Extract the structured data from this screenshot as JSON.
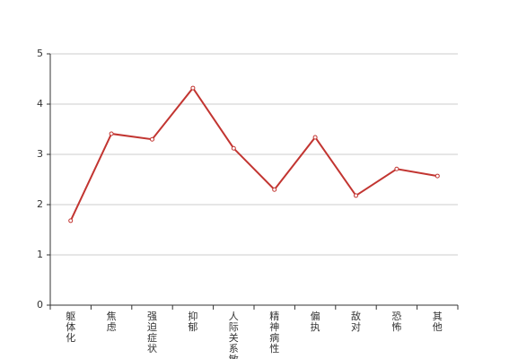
{
  "chart_data": {
    "type": "line",
    "categories": [
      "躯体化",
      "焦虑",
      "强迫症状",
      "抑郁",
      "人际关系敏感",
      "精神病性",
      "偏执",
      "敌对",
      "恐怖",
      "其他"
    ],
    "values": [
      1.68,
      3.41,
      3.3,
      4.32,
      3.12,
      2.3,
      3.34,
      2.18,
      2.71,
      2.57
    ],
    "color": "#c23531",
    "ylim": [
      0,
      5
    ],
    "yticks": [
      0,
      1,
      2,
      3,
      4,
      5
    ],
    "grid": true
  }
}
